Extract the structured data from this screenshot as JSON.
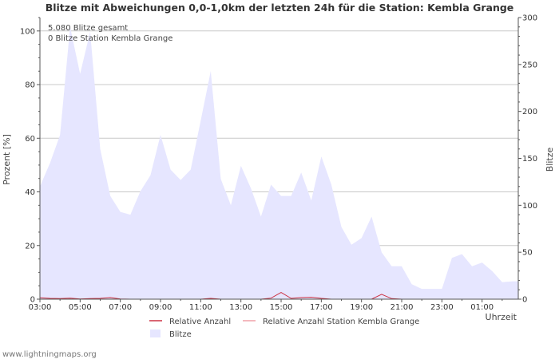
{
  "chart_data": {
    "type": "area",
    "title": "Blitze mit Abweichungen 0,0-1,0km der letzten 24h für die Station: Kembla Grange",
    "ylabel_left": "Prozent   [%]",
    "ylabel_right": "Blitze",
    "xlabel": "Uhrzeit",
    "ylim_left": [
      0,
      105
    ],
    "ylim_right": [
      0,
      300
    ],
    "yticks_left": [
      0,
      20,
      40,
      60,
      80,
      100
    ],
    "yticks_right": [
      0,
      50,
      100,
      150,
      200,
      250,
      300
    ],
    "xticks": [
      "03:00",
      "05:00",
      "07:00",
      "09:00",
      "11:00",
      "13:00",
      "15:00",
      "17:00",
      "19:00",
      "21:00",
      "23:00",
      "01:00"
    ],
    "x_hours": [
      3.0,
      3.5,
      4.0,
      4.5,
      5.0,
      5.5,
      6.0,
      6.5,
      7.0,
      7.5,
      8.0,
      8.5,
      9.0,
      9.5,
      10.0,
      10.5,
      11.0,
      11.5,
      12.0,
      12.5,
      13.0,
      13.5,
      14.0,
      14.5,
      15.0,
      15.5,
      16.0,
      16.5,
      17.0,
      17.5,
      18.0,
      18.5,
      19.0,
      19.5,
      20.0,
      20.5,
      21.0,
      21.5,
      22.0,
      22.5,
      23.0,
      23.5,
      24.0,
      24.5,
      25.0,
      25.5,
      26.0,
      26.5
    ],
    "series": [
      {
        "name": "Blitze",
        "axis": "right",
        "color": "#e6e6ff",
        "values": [
          120,
          145,
          175,
          290,
          240,
          285,
          160,
          110,
          93,
          90,
          115,
          132,
          175,
          138,
          127,
          138,
          190,
          243,
          128,
          100,
          142,
          118,
          88,
          122,
          110,
          110,
          135,
          105,
          152,
          122,
          77,
          58,
          65,
          88,
          50,
          35,
          35,
          16,
          11,
          11,
          11,
          44,
          48,
          35,
          39,
          30,
          18,
          19
        ]
      },
      {
        "name": "Relative Anzahl",
        "axis": "left",
        "color": "#cc3344",
        "values": [
          0.5,
          0.3,
          0.2,
          0.4,
          0.1,
          0.2,
          0.3,
          0.6,
          0.1,
          0.0,
          0.0,
          0.0,
          0.0,
          0.0,
          0.0,
          0.0,
          0.0,
          0.3,
          0.0,
          0.0,
          0.0,
          0.0,
          0.0,
          0.4,
          2.5,
          0.3,
          0.6,
          0.7,
          0.3,
          0.0,
          0.0,
          0.0,
          0.0,
          0.0,
          1.8,
          0.2,
          0.0,
          0.0,
          0.0,
          0.0,
          0.0,
          0.0,
          0.0,
          0.0,
          0.0,
          0.0,
          0.0,
          0.0
        ]
      },
      {
        "name": "Relative Anzahl Station Kembla Grange",
        "axis": "left",
        "color": "#f0a0a8",
        "values": [
          0,
          0,
          0,
          0,
          0,
          0,
          0,
          0,
          0,
          0,
          0,
          0,
          0,
          0,
          0,
          0,
          0,
          0,
          0,
          0,
          0,
          0,
          0,
          0,
          0,
          0,
          0,
          0,
          0,
          0,
          0,
          0,
          0,
          0,
          0,
          0,
          0,
          0,
          0,
          0,
          0,
          0,
          0,
          0,
          0,
          0,
          0,
          0
        ]
      }
    ],
    "annotations": [
      "5.080 Blitze gesamt",
      "0 Blitze Station Kembla Grange"
    ],
    "legend": [
      "Relative Anzahl",
      "Relative Anzahl Station Kembla Grange",
      "Blitze"
    ],
    "legend_position": "bottom"
  },
  "footer": "www.lightningmaps.org",
  "colors": {
    "grid": "#c8c8c8",
    "axis": "#555555",
    "text": "#333333"
  }
}
